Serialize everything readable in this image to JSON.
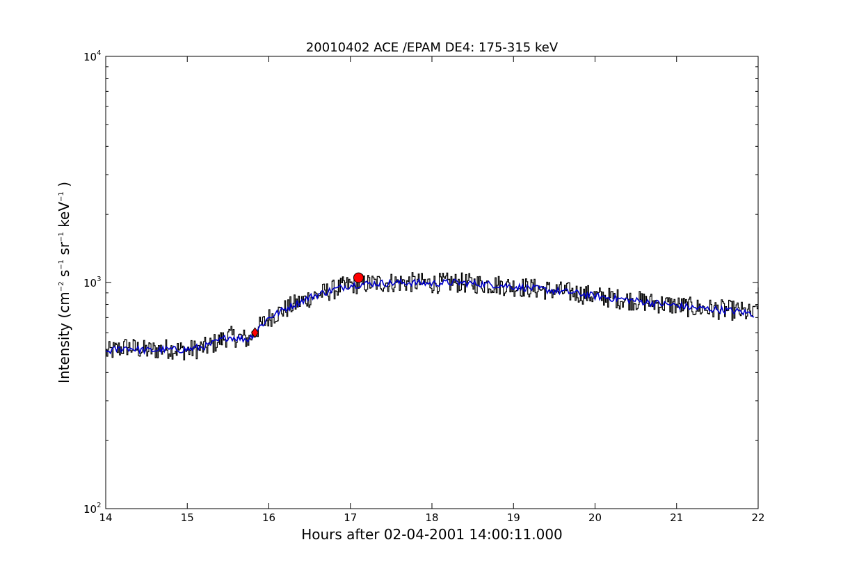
{
  "chart_data": {
    "type": "line",
    "title": "20010402 ACE /EPAM DE4: 175-315 keV",
    "xlabel": "Hours after 02-04-2001 14:00:11.000",
    "ylabel": {
      "prefix": "Intensity (cm",
      "sup1": "−2",
      "mid1": " s",
      "sup2": "−1",
      "mid2": " sr",
      "sup3": "−1",
      "mid3": " keV",
      "sup4": "−1",
      "suffix": " )"
    },
    "xlim": [
      14,
      22
    ],
    "ylim": [
      100,
      10000
    ],
    "yscale": "log",
    "x_ticks": [
      "14",
      "15",
      "16",
      "17",
      "18",
      "19",
      "20",
      "21",
      "22"
    ],
    "y_ticks": [
      {
        "base": "10",
        "exp": "2"
      },
      {
        "base": "10",
        "exp": "3"
      },
      {
        "base": "10",
        "exp": "4"
      }
    ],
    "grid": false,
    "legend": "none",
    "series": [
      {
        "color": "#000000",
        "style": "raw steps",
        "x": [
          14.0,
          14.25,
          14.5,
          14.75,
          15.0,
          15.25,
          15.5,
          15.75,
          15.85,
          16.0,
          16.25,
          16.5,
          16.75,
          17.0,
          17.25,
          17.5,
          17.75,
          18.0,
          18.25,
          18.5,
          18.75,
          19.0,
          19.25,
          19.5,
          19.75,
          20.0,
          20.25,
          20.5,
          20.75,
          21.0,
          21.25,
          21.5,
          21.75,
          21.95,
          22.0
        ],
        "y": [
          490,
          520,
          500,
          510,
          500,
          520,
          580,
          560,
          620,
          700,
          780,
          860,
          920,
          980,
          990,
          1000,
          1000,
          990,
          1000,
          990,
          980,
          960,
          940,
          920,
          900,
          870,
          850,
          830,
          810,
          790,
          770,
          760,
          750,
          720,
          860
        ]
      },
      {
        "color": "#0000cc",
        "style": "smoothed",
        "x": [
          14.0,
          14.25,
          14.5,
          14.75,
          15.0,
          15.25,
          15.5,
          15.75,
          15.85,
          16.0,
          16.25,
          16.5,
          16.75,
          17.0,
          17.25,
          17.5,
          17.75,
          18.0,
          18.25,
          18.5,
          18.75,
          19.0,
          19.25,
          19.5,
          19.75,
          20.0,
          20.25,
          20.5,
          20.75,
          21.0,
          21.25,
          21.5,
          21.75,
          21.95
        ],
        "y": [
          495,
          515,
          500,
          505,
          505,
          525,
          575,
          560,
          615,
          700,
          780,
          860,
          920,
          975,
          990,
          995,
          1000,
          990,
          1000,
          990,
          980,
          960,
          940,
          920,
          900,
          870,
          850,
          830,
          810,
          790,
          770,
          760,
          745,
          725
        ]
      }
    ],
    "markers": [
      {
        "shape": "diamond",
        "color": "#ff0000",
        "x": 15.83,
        "y": 600
      },
      {
        "shape": "circle",
        "color": "#ff0000",
        "x": 17.1,
        "y": 1050
      }
    ]
  }
}
